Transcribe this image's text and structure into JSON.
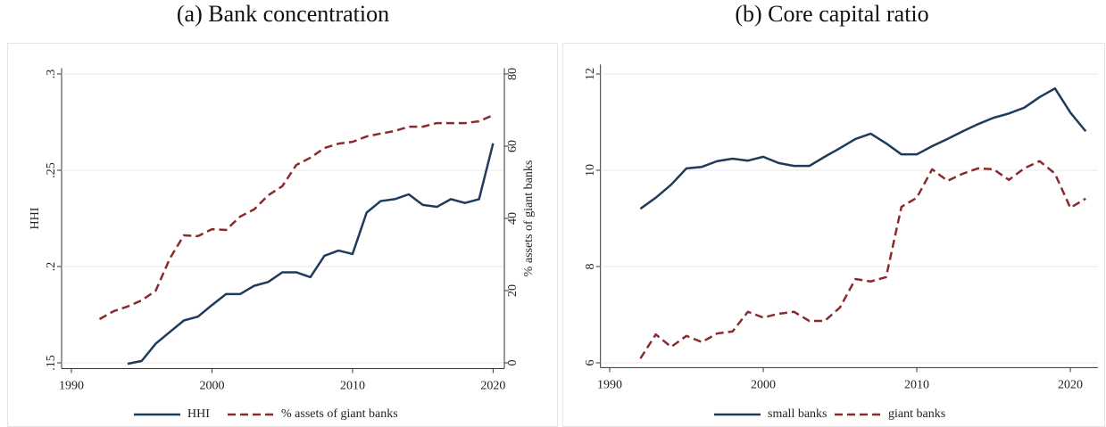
{
  "chart_data": [
    {
      "type": "line",
      "title": "(a) Bank concentration",
      "ylabel": "HHI",
      "y2label": "% assets of giant banks",
      "x": [
        1992,
        1993,
        1994,
        1995,
        1996,
        1997,
        1998,
        1999,
        2000,
        2001,
        2002,
        2003,
        2004,
        2005,
        2006,
        2007,
        2008,
        2009,
        2010,
        2011,
        2012,
        2013,
        2014,
        2015,
        2016,
        2017,
        2018,
        2019,
        2020
      ],
      "series": [
        {
          "name": "HHI",
          "color": "#1f3b5a",
          "linestyle": "solid",
          "values": [
            null,
            null,
            0.1495,
            0.151,
            0.16,
            0.166,
            0.172,
            0.174,
            0.18,
            0.1857,
            0.1857,
            0.19,
            0.192,
            0.197,
            0.197,
            0.1945,
            0.2056,
            0.2083,
            0.2065,
            0.228,
            0.234,
            0.235,
            0.2375,
            0.232,
            0.231,
            0.235,
            0.233,
            0.235,
            0.264
          ]
        },
        {
          "name": "% assets of giant banks",
          "color": "#8b2a2e",
          "linestyle": "dashed",
          "axis": "y2",
          "values": [
            12.1,
            14.3,
            15.6,
            17.3,
            20,
            28.9,
            35.3,
            35.1,
            37,
            36.8,
            40.5,
            42.5,
            46.4,
            48.9,
            54.8,
            56.8,
            59.5,
            60.7,
            61.2,
            62.7,
            63.5,
            64.2,
            65.4,
            65.4,
            66.4,
            66.4,
            66.4,
            66.9,
            68.6
          ]
        }
      ],
      "xlim": [
        1989.3,
        2020.8
      ],
      "xticks": [
        1990,
        2000,
        2010,
        2020
      ],
      "ylim": [
        0.147,
        0.303
      ],
      "yticks": [
        {
          "value": 0.15,
          "label": ".15"
        },
        {
          "value": 0.2,
          "label": ".2"
        },
        {
          "value": 0.25,
          "label": ".25"
        },
        {
          "value": 0.3,
          "label": ".3"
        }
      ],
      "y2lim": [
        -1.6,
        81.6
      ],
      "y2ticks": [
        0,
        20,
        40,
        60,
        80
      ],
      "grid": true,
      "legend": "bottom"
    },
    {
      "type": "line",
      "title": "(b) Core capital ratio",
      "x": [
        1992,
        1993,
        1994,
        1995,
        1996,
        1997,
        1998,
        1999,
        2000,
        2001,
        2002,
        2003,
        2004,
        2005,
        2006,
        2007,
        2008,
        2009,
        2010,
        2011,
        2012,
        2013,
        2014,
        2015,
        2016,
        2017,
        2018,
        2019,
        2020,
        2021
      ],
      "series": [
        {
          "name": "small banks",
          "color": "#1f3b5a",
          "linestyle": "solid",
          "values": [
            9.2,
            9.43,
            9.7,
            10.04,
            10.07,
            10.19,
            10.24,
            10.2,
            10.28,
            10.15,
            10.09,
            10.09,
            10.28,
            10.46,
            10.65,
            10.76,
            10.56,
            10.33,
            10.33,
            10.5,
            10.65,
            10.81,
            10.96,
            11.09,
            11.18,
            11.3,
            11.52,
            11.7,
            11.2,
            10.81
          ]
        },
        {
          "name": "giant banks",
          "color": "#8b2a2e",
          "linestyle": "dashed",
          "values": [
            6.09,
            6.59,
            6.33,
            6.56,
            6.43,
            6.61,
            6.65,
            7.06,
            6.94,
            7.02,
            7.06,
            6.87,
            6.87,
            7.15,
            7.74,
            7.69,
            7.78,
            9.24,
            9.43,
            10.02,
            9.78,
            9.93,
            10.04,
            10.02,
            9.8,
            10.04,
            10.19,
            9.93,
            9.22,
            9.41
          ]
        }
      ],
      "xlim": [
        1989.4,
        2021.8
      ],
      "xticks": [
        1990,
        2000,
        2010,
        2020
      ],
      "ylim": [
        5.9,
        12.2
      ],
      "yticks": [
        6,
        8,
        10,
        12
      ],
      "grid": true,
      "legend": "bottom"
    }
  ]
}
